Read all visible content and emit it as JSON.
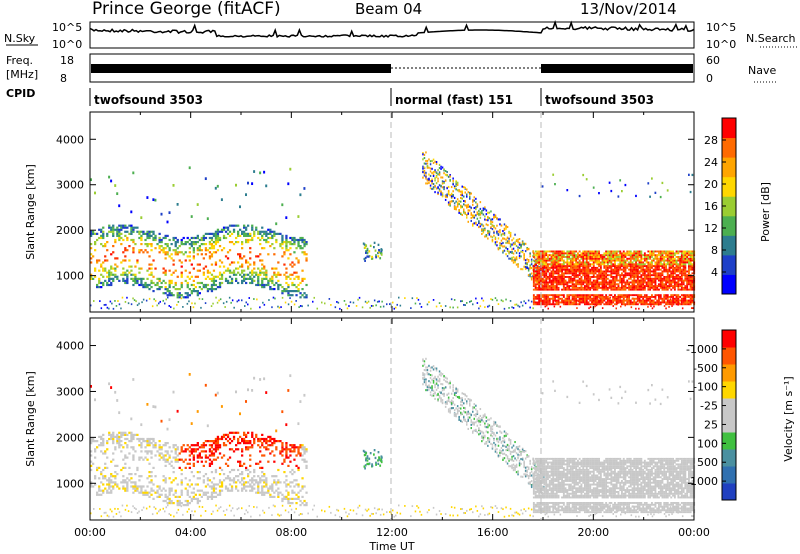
{
  "header": {
    "station": "Prince George (fitACF)",
    "beam": "Beam 04",
    "date": "13/Nov/2014"
  },
  "top_panels": {
    "nsky_label": "N.Sky",
    "nsky_ticks": [
      "10^5",
      "10^0"
    ],
    "nsearch_label": "N.Search",
    "nsearch_ticks": [
      "10^5",
      "10^0"
    ],
    "freq_label_1": "Freq.",
    "freq_label_2": "[MHz]",
    "freq_ticks": [
      "18",
      "8"
    ],
    "nave_label": "Nave",
    "nave_ticks": [
      "60",
      "0"
    ],
    "cpid_label": "CPID"
  },
  "cpid_segments": [
    {
      "name": "twofsound 3503",
      "start_hour": 0,
      "end_hour": 12
    },
    {
      "name": "normal (fast) 151",
      "start_hour": 12,
      "end_hour": 18
    },
    {
      "name": "twofsound 3503",
      "start_hour": 18,
      "end_hour": 24
    }
  ],
  "chart_data": [
    {
      "type": "heatmap",
      "name": "power",
      "ylabel": "Slant Range [km]",
      "xlabel": "",
      "xlim": [
        0,
        24
      ],
      "ylim": [
        200,
        4600
      ],
      "yticks": [
        1000,
        2000,
        3000,
        4000
      ],
      "colorbar": {
        "label": "Power [dB]",
        "ticks": [
          "4",
          "8",
          "12",
          "16",
          "20",
          "24",
          "28"
        ],
        "colors": [
          "#0000ff",
          "#1e40c8",
          "#2d7d8f",
          "#4caf50",
          "#9acd32",
          "#ffd700",
          "#ffa500",
          "#ff6a00",
          "#ff0000"
        ]
      }
    },
    {
      "type": "heatmap",
      "name": "velocity",
      "ylabel": "Slant Range [km]",
      "xlabel": "Time UT",
      "xlim": [
        0,
        24
      ],
      "ylim": [
        200,
        4600
      ],
      "yticks": [
        1000,
        2000,
        3000,
        4000
      ],
      "xtick_labels": [
        "00:00",
        "04:00",
        "08:00",
        "12:00",
        "16:00",
        "20:00",
        "00:00"
      ],
      "colorbar": {
        "label": "Velocity [m s⁻¹]",
        "ticks": [
          "1000",
          "500",
          "100",
          "25",
          "-25",
          "-100",
          "-500",
          "-1000"
        ],
        "colors": [
          "#2040c0",
          "#3070b0",
          "#4a90a0",
          "#40c040",
          "#c8c8c8",
          "#c8c8c8",
          "#ffd700",
          "#ff9a00",
          "#ff5500",
          "#ff0000"
        ]
      }
    }
  ]
}
